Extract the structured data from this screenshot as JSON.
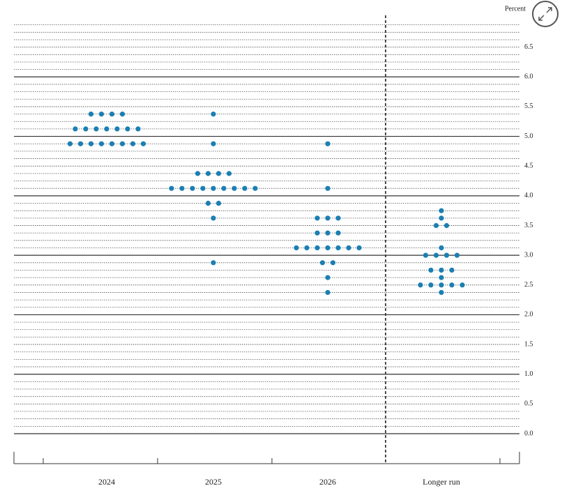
{
  "chart_data": {
    "type": "dot-plot",
    "y_label": "Percent",
    "categories": [
      "2024",
      "2025",
      "2026",
      "Longer run"
    ],
    "values": [
      [
        5.375,
        5.375,
        5.375,
        5.375,
        5.125,
        5.125,
        5.125,
        5.125,
        5.125,
        5.125,
        5.125,
        4.875,
        4.875,
        4.875,
        4.875,
        4.875,
        4.875,
        4.875,
        4.875
      ],
      [
        5.375,
        4.875,
        4.375,
        4.375,
        4.375,
        4.375,
        4.125,
        4.125,
        4.125,
        4.125,
        4.125,
        4.125,
        4.125,
        4.125,
        4.125,
        3.875,
        3.875,
        3.625,
        2.875
      ],
      [
        4.875,
        4.125,
        3.625,
        3.625,
        3.625,
        3.375,
        3.375,
        3.375,
        3.125,
        3.125,
        3.125,
        3.125,
        3.125,
        3.125,
        3.125,
        2.875,
        2.875,
        2.625,
        2.375
      ],
      [
        3.75,
        3.625,
        3.5,
        3.5,
        3.125,
        3.0,
        3.0,
        3.0,
        3.0,
        2.75,
        2.75,
        2.75,
        2.625,
        2.5,
        2.5,
        2.5,
        2.5,
        2.5,
        2.375
      ]
    ],
    "color": "#1b7fb3",
    "ylim": [
      0,
      7
    ],
    "yticks": [
      {
        "value": 0,
        "label": "0.0"
      },
      0.5,
      {
        "value": 1,
        "label": "1.0"
      },
      1.5,
      {
        "value": 2,
        "label": "2.0"
      },
      2.5,
      {
        "value": 3,
        "label": "3.0"
      },
      3.5,
      {
        "value": 4,
        "label": "4.0"
      },
      4.5,
      {
        "value": 5,
        "label": "5.0"
      },
      5.5,
      {
        "value": 6,
        "label": "6.0"
      },
      6.5
    ],
    "grid": true
  }
}
